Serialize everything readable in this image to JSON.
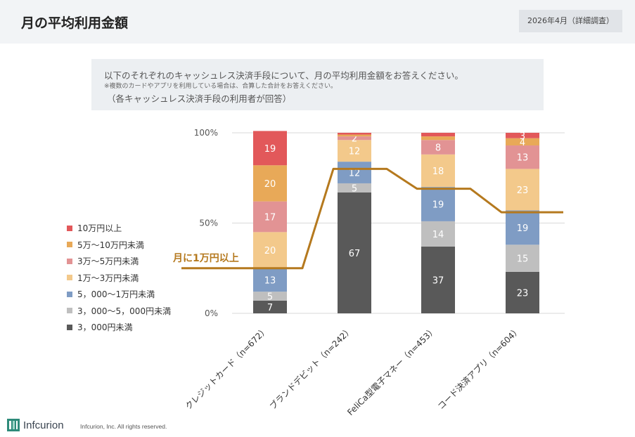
{
  "header": {
    "title": "月の平均利用金額",
    "date_badge": "2026年4月（詳細調査）"
  },
  "question": {
    "line1": "以下のそれぞれのキャッシュレス決済手段について、月の平均利用金額をお答えください。",
    "line2": "※複数のカードやアプリを利用している場合は、合算した合計をお答えください。",
    "line3": "（各キャッシュレス決済手段の利用者が回答）"
  },
  "chart_data": {
    "type": "bar",
    "stacked": true,
    "percent": true,
    "categories": [
      "クレジットカード（n=672）",
      "ブランドデビット（n=242）",
      "FeliCa型電子マネー（n=453）",
      "コード決済アプリ（n=604）"
    ],
    "y_ticks": [
      "100%",
      "50%",
      "0%"
    ],
    "ylim": [
      0,
      100
    ],
    "grid": true,
    "legend_position": "left",
    "series": [
      {
        "name": "3，000円未満",
        "color": "#595959",
        "values": [
          7,
          67,
          37,
          23
        ],
        "labels": [
          "7",
          "67",
          "37",
          "23"
        ]
      },
      {
        "name": "3，000～5，000円未満",
        "color": "#bfbfbf",
        "values": [
          5,
          5,
          14,
          15
        ],
        "labels": [
          "5",
          "5",
          "14",
          "15"
        ]
      },
      {
        "name": "5，000～1万円未満",
        "color": "#7f9cc4",
        "values": [
          13,
          12,
          19,
          19
        ],
        "labels": [
          "13",
          "12",
          "19",
          "19"
        ]
      },
      {
        "name": "1万～3万円未満",
        "color": "#f3c98b",
        "values": [
          20,
          12,
          18,
          23
        ],
        "labels": [
          "20",
          "12",
          "18",
          "23"
        ]
      },
      {
        "name": "3万～5万円未満",
        "color": "#e29394",
        "values": [
          17,
          2,
          8,
          13
        ],
        "labels": [
          "17",
          "2",
          "8",
          "13"
        ]
      },
      {
        "name": "5万～10万円未満",
        "color": "#e8a958",
        "values": [
          20,
          1,
          2,
          4
        ],
        "labels": [
          "20",
          "",
          "",
          "4"
        ]
      },
      {
        "name": "10万円以上",
        "color": "#e2585a",
        "values": [
          19,
          1,
          2,
          3
        ],
        "labels": [
          "19",
          "",
          "",
          "3"
        ]
      }
    ],
    "reference_line": {
      "label": "月に1万円以上",
      "color": "#b5791e",
      "values": [
        25,
        80,
        69,
        56
      ]
    }
  },
  "footer": {
    "logo_text": "Infcurion",
    "copyright": "Infcurion, Inc.  All rights reserved."
  }
}
